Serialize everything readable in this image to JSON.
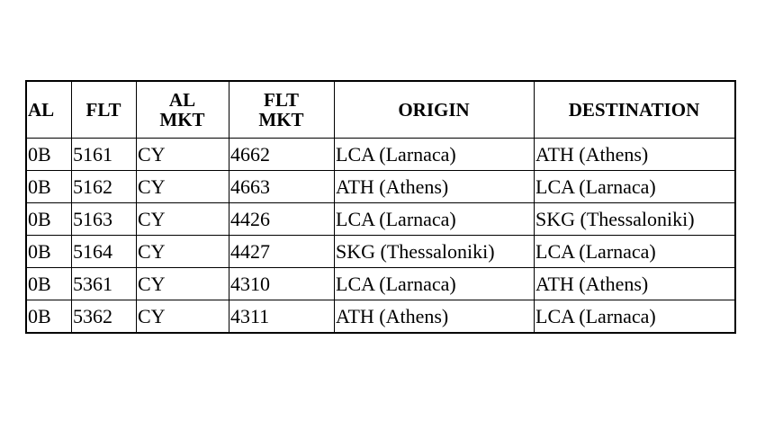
{
  "table": {
    "headers": [
      "AL",
      "FLT",
      "AL MKT",
      "FLT MKT",
      "ORIGIN",
      "DESTINATION"
    ],
    "header_lines": [
      [
        "AL"
      ],
      [
        "FLT"
      ],
      [
        "AL",
        "MKT"
      ],
      [
        "FLT",
        "MKT"
      ],
      [
        "ORIGIN"
      ],
      [
        "DESTINATION"
      ]
    ],
    "rows": [
      [
        "0B",
        "5161",
        "CY",
        "4662",
        "LCA (Larnaca)",
        "ATH (Athens)"
      ],
      [
        "0B",
        "5162",
        "CY",
        "4663",
        "ATH (Athens)",
        "LCA (Larnaca)"
      ],
      [
        "0B",
        "5163",
        "CY",
        "4426",
        "LCA (Larnaca)",
        "SKG (Thessaloniki)"
      ],
      [
        "0B",
        "5164",
        "CY",
        "4427",
        "SKG (Thessaloniki)",
        "LCA (Larnaca)"
      ],
      [
        "0B",
        "5361",
        "CY",
        "4310",
        "LCA (Larnaca)",
        "ATH (Athens)"
      ],
      [
        "0B",
        "5362",
        "CY",
        "4311",
        "ATH (Athens)",
        "LCA (Larnaca)"
      ]
    ]
  }
}
